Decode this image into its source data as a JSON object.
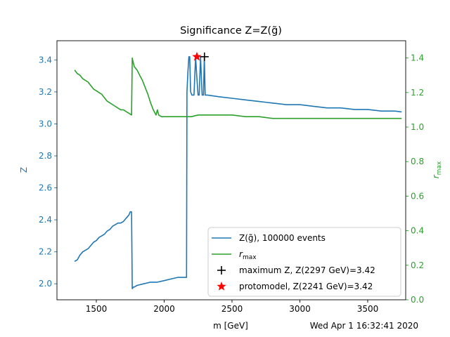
{
  "chart_data": {
    "type": "line",
    "title": "Significance Z=Z(g̃)",
    "xlabel": "m [GeV]",
    "ylabel_left": "Z",
    "ylabel_right_main": "r",
    "ylabel_right_sub": "max",
    "footer_timestamp": "Wed Apr  1 16:32:41 2020",
    "xlim": [
      1210,
      3780
    ],
    "ylim_left": [
      1.9,
      3.52
    ],
    "ylim_right": [
      0.0,
      1.5
    ],
    "xticks": [
      1500,
      2000,
      2500,
      3000,
      3500
    ],
    "yticks_left": [
      2.0,
      2.2,
      2.4,
      2.6,
      2.8,
      3.0,
      3.2,
      3.4
    ],
    "yticks_right": [
      0.0,
      0.2,
      0.4,
      0.6,
      0.8,
      1.0,
      1.2,
      1.4
    ],
    "yticks_left_labels": [
      "2.0",
      "2.2",
      "2.4",
      "2.6",
      "2.8",
      "3.0",
      "3.2",
      "3.4"
    ],
    "yticks_right_labels": [
      "0.0",
      "0.2",
      "0.4",
      "0.6",
      "0.8",
      "1.0",
      "1.2",
      "1.4"
    ],
    "colors": {
      "z": "#1f77b4",
      "r": "#2ca02c",
      "max": "#000000",
      "proto": "#ff0000"
    },
    "series": [
      {
        "name": "Z(g̃), 100000 events",
        "axis": "left",
        "x": [
          1340,
          1360,
          1380,
          1400,
          1420,
          1440,
          1460,
          1480,
          1500,
          1520,
          1540,
          1560,
          1580,
          1600,
          1620,
          1640,
          1660,
          1680,
          1700,
          1720,
          1740,
          1750,
          1760,
          1765,
          1775,
          1780,
          1800,
          1850,
          1900,
          1950,
          2000,
          2050,
          2100,
          2150,
          2165,
          2168,
          2175,
          2182,
          2188,
          2195,
          2205,
          2220,
          2232,
          2240,
          2250,
          2258,
          2268,
          2280,
          2290,
          2296,
          2302,
          2320,
          2400,
          2500,
          2600,
          2700,
          2800,
          2900,
          3000,
          3100,
          3200,
          3300,
          3400,
          3500,
          3600,
          3700,
          3750
        ],
        "y": [
          2.14,
          2.15,
          2.18,
          2.2,
          2.21,
          2.22,
          2.24,
          2.26,
          2.27,
          2.29,
          2.3,
          2.31,
          2.33,
          2.34,
          2.36,
          2.37,
          2.38,
          2.38,
          2.39,
          2.41,
          2.43,
          2.45,
          2.45,
          1.97,
          1.98,
          1.98,
          1.99,
          2.0,
          2.01,
          2.01,
          2.02,
          2.03,
          2.04,
          2.04,
          2.04,
          3.2,
          3.32,
          3.42,
          3.42,
          3.2,
          3.18,
          3.18,
          3.42,
          3.3,
          3.18,
          3.18,
          3.42,
          3.18,
          3.18,
          3.42,
          3.18,
          3.18,
          3.17,
          3.16,
          3.15,
          3.14,
          3.13,
          3.12,
          3.12,
          3.11,
          3.1,
          3.1,
          3.09,
          3.09,
          3.08,
          3.08,
          3.075
        ]
      },
      {
        "name": "r_max",
        "axis": "right",
        "x": [
          1340,
          1360,
          1380,
          1400,
          1420,
          1440,
          1460,
          1480,
          1500,
          1520,
          1540,
          1560,
          1580,
          1600,
          1620,
          1640,
          1660,
          1680,
          1700,
          1720,
          1740,
          1760,
          1765,
          1770,
          1780,
          1800,
          1820,
          1840,
          1860,
          1880,
          1900,
          1920,
          1940,
          1950,
          1960,
          1980,
          2000,
          2050,
          2100,
          2150,
          2200,
          2250,
          2300,
          2400,
          2500,
          2600,
          2700,
          2800,
          2900,
          3000,
          3100,
          3200,
          3300,
          3400,
          3500,
          3600,
          3700,
          3750
        ],
        "y": [
          1.33,
          1.31,
          1.3,
          1.28,
          1.27,
          1.26,
          1.24,
          1.22,
          1.21,
          1.2,
          1.19,
          1.17,
          1.15,
          1.14,
          1.13,
          1.12,
          1.11,
          1.1,
          1.1,
          1.09,
          1.08,
          1.07,
          1.4,
          1.38,
          1.35,
          1.33,
          1.3,
          1.27,
          1.23,
          1.19,
          1.14,
          1.1,
          1.07,
          1.1,
          1.07,
          1.06,
          1.06,
          1.06,
          1.06,
          1.06,
          1.06,
          1.07,
          1.07,
          1.07,
          1.07,
          1.06,
          1.06,
          1.05,
          1.05,
          1.05,
          1.05,
          1.05,
          1.05,
          1.05,
          1.05,
          1.05,
          1.05,
          1.05
        ]
      }
    ],
    "markers": [
      {
        "name": "maximum Z, Z(2297 GeV)=3.42",
        "x": 2297,
        "y": 3.42,
        "symbol": "plus",
        "color": "#000000"
      },
      {
        "name": "protomodel, Z(2241 GeV)=3.42",
        "x": 2241,
        "y": 3.42,
        "symbol": "star",
        "color": "#ff0000"
      }
    ],
    "legend": {
      "placement": "lower-right",
      "entries": [
        {
          "label_main": "Z(g̃), 100000 events",
          "label_sub": "",
          "kind": "line",
          "color": "#1f77b4"
        },
        {
          "label_main": "r",
          "label_sub": "max",
          "kind": "line",
          "color": "#2ca02c"
        },
        {
          "label_main": "maximum Z, Z(2297 GeV)=3.42",
          "label_sub": "",
          "kind": "plus",
          "color": "#000000"
        },
        {
          "label_main": "protomodel, Z(2241 GeV)=3.42",
          "label_sub": "",
          "kind": "star",
          "color": "#ff0000"
        }
      ]
    },
    "grid": false
  }
}
